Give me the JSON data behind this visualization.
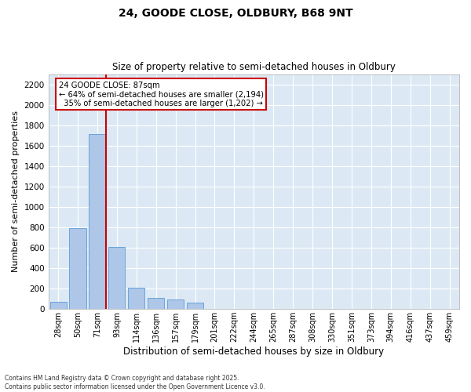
{
  "title1": "24, GOODE CLOSE, OLDBURY, B68 9NT",
  "title2": "Size of property relative to semi-detached houses in Oldbury",
  "xlabel": "Distribution of semi-detached houses by size in Oldbury",
  "ylabel": "Number of semi-detached properties",
  "categories": [
    "28sqm",
    "50sqm",
    "71sqm",
    "93sqm",
    "114sqm",
    "136sqm",
    "157sqm",
    "179sqm",
    "201sqm",
    "222sqm",
    "244sqm",
    "265sqm",
    "287sqm",
    "308sqm",
    "330sqm",
    "351sqm",
    "373sqm",
    "394sqm",
    "416sqm",
    "437sqm",
    "459sqm"
  ],
  "values": [
    70,
    790,
    1710,
    610,
    210,
    105,
    95,
    65,
    0,
    0,
    0,
    0,
    0,
    0,
    0,
    0,
    0,
    0,
    0,
    0,
    0
  ],
  "bar_color": "#aec6e8",
  "bar_edge_color": "#5b9bd5",
  "bg_color": "#dce9f5",
  "grid_color": "#ffffff",
  "vline_color": "#cc0000",
  "annotation_text": "24 GOODE CLOSE: 87sqm\n← 64% of semi-detached houses are smaller (2,194)\n  35% of semi-detached houses are larger (1,202) →",
  "annotation_box_color": "#ffffff",
  "annotation_box_edge": "#cc0000",
  "ylim": [
    0,
    2300
  ],
  "yticks": [
    0,
    200,
    400,
    600,
    800,
    1000,
    1200,
    1400,
    1600,
    1800,
    2000,
    2200
  ],
  "footnote": "Contains HM Land Registry data © Crown copyright and database right 2025.\nContains public sector information licensed under the Open Government Licence v3.0."
}
